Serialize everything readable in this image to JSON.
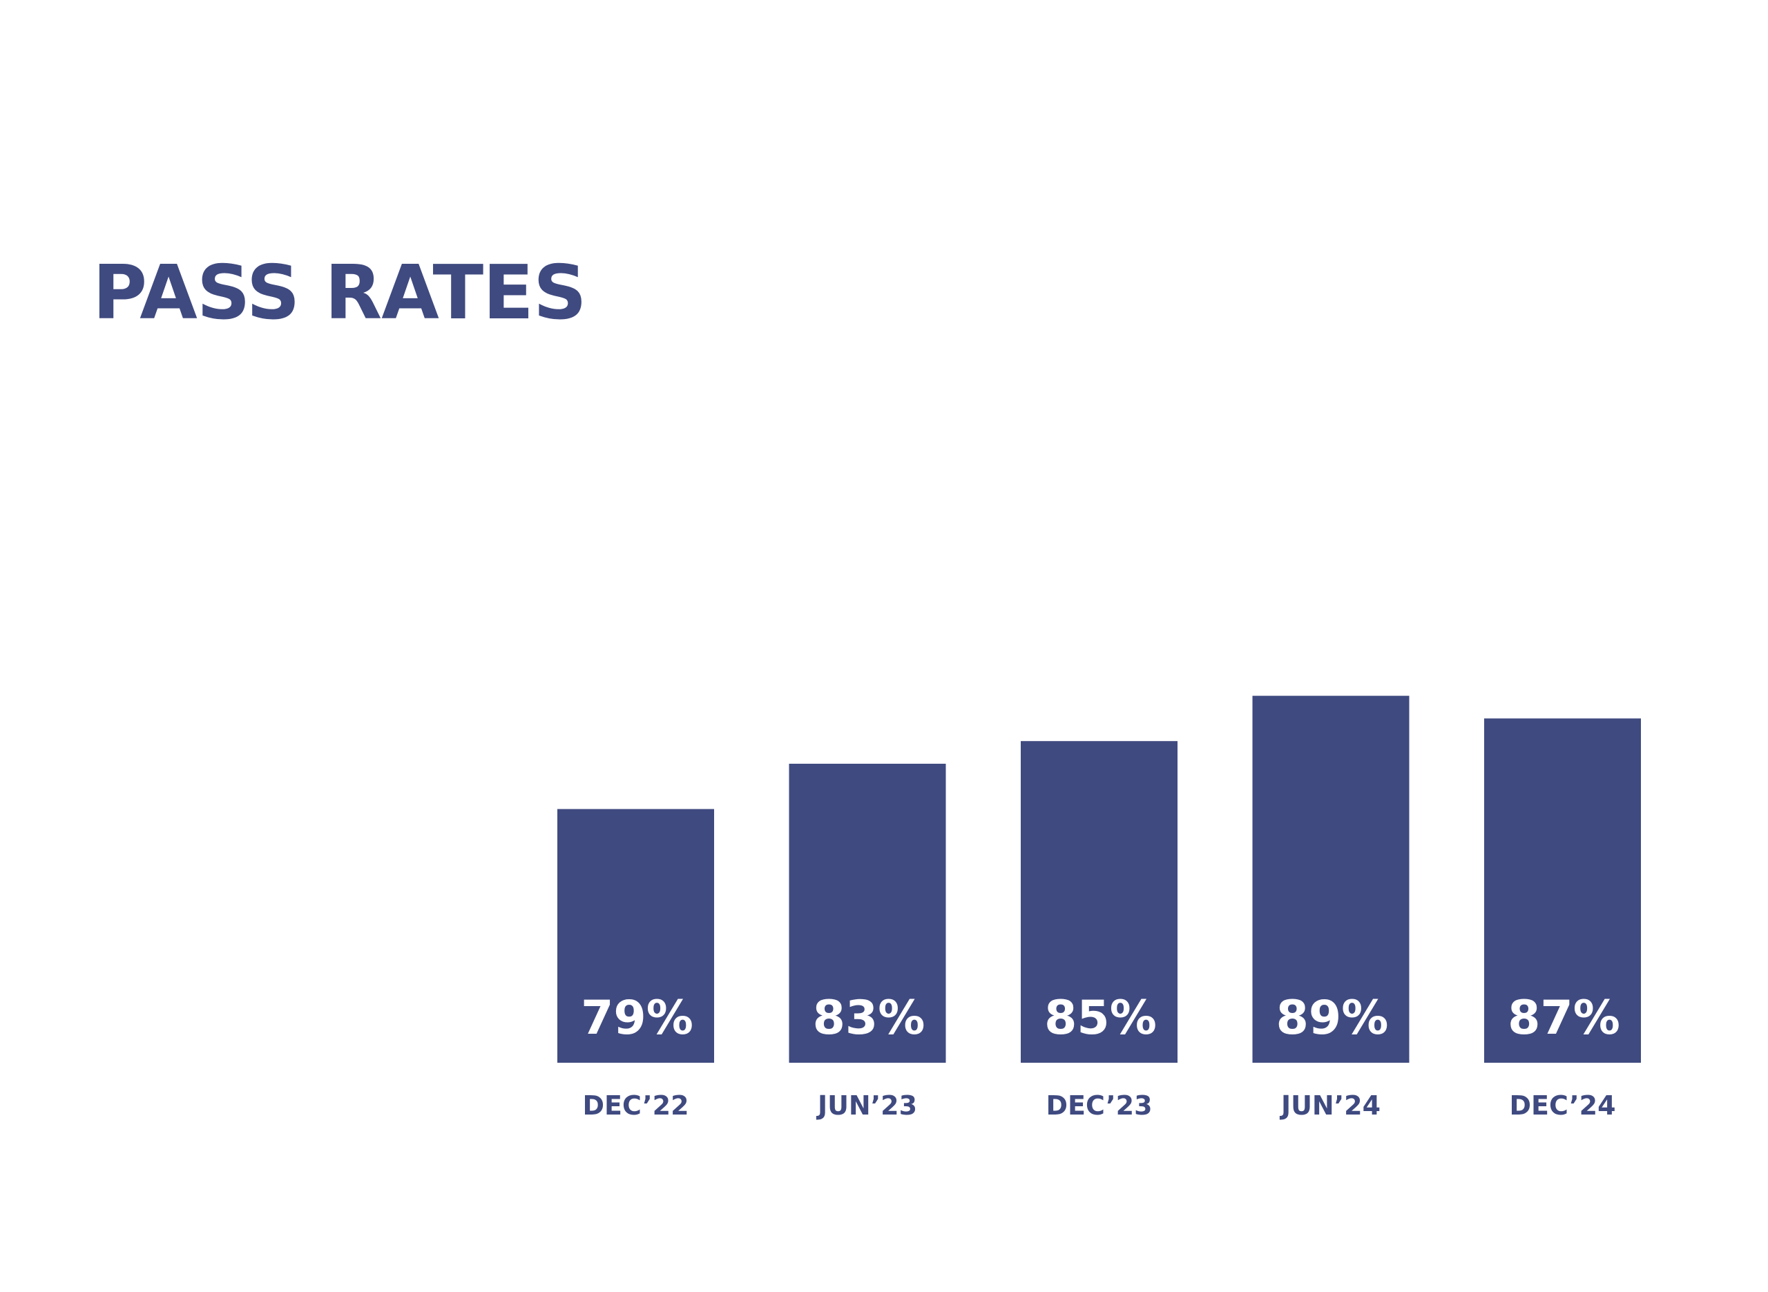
{
  "page": {
    "title": "PASS RATES"
  },
  "colors": {
    "bar": "#3f4a80",
    "bar_label": "#ffffff",
    "category_label": "#3f4a80",
    "title": "#3f4a80",
    "background": "#ffffff"
  },
  "chart_data": {
    "type": "bar",
    "title": "PASS RATES",
    "categories": [
      "DEC’22",
      "JUN’23",
      "DEC’23",
      "JUN’24",
      "DEC’24"
    ],
    "values": [
      79,
      83,
      85,
      89,
      87
    ],
    "data_labels": [
      "79%",
      "83%",
      "85%",
      "89%",
      "87%"
    ],
    "xlabel": "",
    "ylabel": "",
    "grid": false,
    "legend": "none"
  }
}
